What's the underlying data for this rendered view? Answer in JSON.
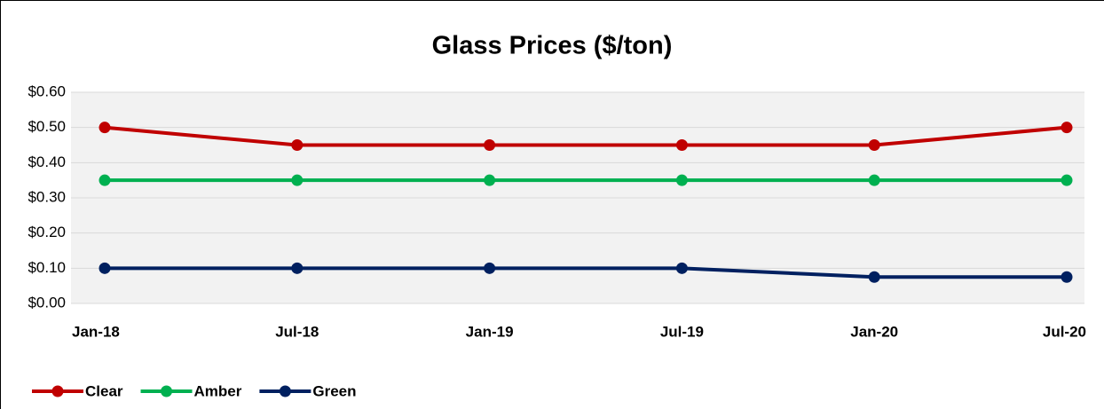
{
  "chart_data": {
    "type": "line",
    "title": "Glass Prices ($/ton)",
    "categories": [
      "Jan-18",
      "Jul-18",
      "Jan-19",
      "Jul-19",
      "Jan-20",
      "Jul-20"
    ],
    "series": [
      {
        "name": "Clear",
        "color": "#c00000",
        "values": [
          0.5,
          0.45,
          0.45,
          0.45,
          0.45,
          0.5
        ]
      },
      {
        "name": "Amber",
        "color": "#00b050",
        "values": [
          0.35,
          0.35,
          0.35,
          0.35,
          0.35,
          0.35
        ]
      },
      {
        "name": "Green",
        "color": "#002060",
        "values": [
          0.1,
          0.1,
          0.1,
          0.1,
          0.075,
          0.075
        ]
      }
    ],
    "ylim": [
      0,
      0.6
    ],
    "yticks": [
      {
        "value": 0,
        "label": "$0.00"
      },
      {
        "value": 0.1,
        "label": "$0.10"
      },
      {
        "value": 0.2,
        "label": "$0.20"
      },
      {
        "value": 0.3,
        "label": "$0.30"
      },
      {
        "value": 0.4,
        "label": "$0.40"
      },
      {
        "value": 0.5,
        "label": "$0.50"
      },
      {
        "value": 0.6,
        "label": "$0.60"
      }
    ],
    "grid": true,
    "legend": "bottom-left"
  }
}
